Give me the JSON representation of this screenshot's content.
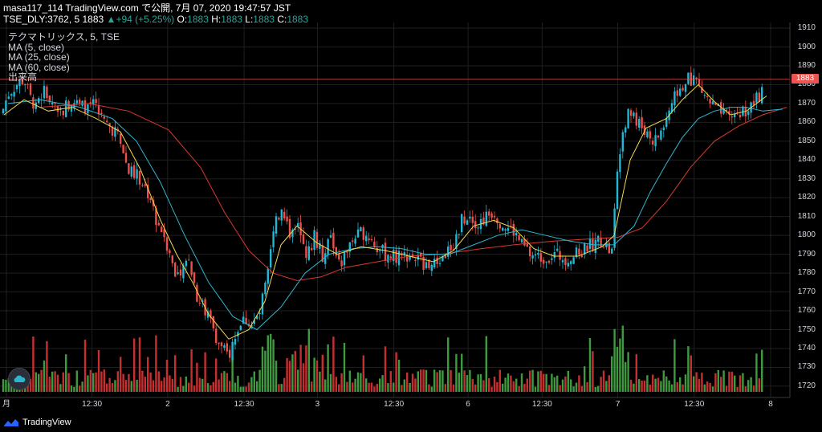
{
  "header": {
    "line1_prefix": "masa117_114 TradingView.com で公開, 7月 07, 2020 19:47:57 JST",
    "symbol": "TSE_DLY:3762, 5 1883",
    "change_arrow": "▲",
    "change": "+94 (+5.25%)",
    "o_label": "O:",
    "o_val": "1883",
    "h_label": "H:",
    "h_val": "1883",
    "l_label": "L:",
    "l_val": "1883",
    "c_label": "C:",
    "c_val": "1883"
  },
  "legend": {
    "symbol_line": "テクマトリックス, 5, TSE",
    "ma5": "MA (5, close)",
    "ma25": "MA (25, close)",
    "ma60": "MA (60, close)",
    "volume": "出来高"
  },
  "current_price": "1883",
  "footer": {
    "brand": "TradingView"
  },
  "colors": {
    "up": "#26a69a",
    "down": "#ef5350",
    "candle_up": "#22b7d4",
    "candle_down": "#ef4f4a",
    "vol_up": "#3f9a3f",
    "vol_down": "#c62f2f",
    "ma5": "#f5d84e",
    "ma25": "#2eb6cf",
    "ma60": "#d9392f",
    "grid": "#1f1f1f"
  },
  "chart_data": {
    "type": "candlestick",
    "yaxis": {
      "ticks": [
        1910,
        1900,
        1890,
        1880,
        1870,
        1860,
        1850,
        1840,
        1830,
        1820,
        1810,
        1800,
        1790,
        1780,
        1770,
        1760,
        1750,
        1740,
        1730,
        1720
      ],
      "range": [
        1714,
        1913
      ]
    },
    "xaxis": {
      "ticks": [
        {
          "label": "月",
          "pos": 0
        },
        {
          "label": "12:30",
          "pos": 0.112
        },
        {
          "label": "2",
          "pos": 0.211
        },
        {
          "label": "12:30",
          "pos": 0.311
        },
        {
          "label": "3",
          "pos": 0.407
        },
        {
          "label": "12:30",
          "pos": 0.507
        },
        {
          "label": "6",
          "pos": 0.604
        },
        {
          "label": "12:30",
          "pos": 0.701
        },
        {
          "label": "7",
          "pos": 0.8
        },
        {
          "label": "12:30",
          "pos": 0.9
        },
        {
          "label": "8",
          "pos": 1.0
        }
      ]
    },
    "price_anchors": [
      [
        0,
        1862
      ],
      [
        10,
        1875
      ],
      [
        20,
        1880
      ],
      [
        30,
        1883
      ],
      [
        40,
        1870
      ],
      [
        55,
        1876
      ],
      [
        75,
        1866
      ],
      [
        90,
        1872
      ],
      [
        100,
        1868
      ],
      [
        115,
        1870
      ],
      [
        130,
        1860
      ],
      [
        145,
        1855
      ],
      [
        160,
        1835
      ],
      [
        175,
        1830
      ],
      [
        185,
        1822
      ],
      [
        195,
        1808
      ],
      [
        205,
        1800
      ],
      [
        215,
        1785
      ],
      [
        225,
        1776
      ],
      [
        235,
        1790
      ],
      [
        245,
        1768
      ],
      [
        255,
        1760
      ],
      [
        265,
        1752
      ],
      [
        275,
        1740
      ],
      [
        285,
        1736
      ],
      [
        295,
        1750
      ],
      [
        305,
        1756
      ],
      [
        315,
        1752
      ],
      [
        325,
        1760
      ],
      [
        335,
        1790
      ],
      [
        345,
        1808
      ],
      [
        352,
        1815
      ],
      [
        362,
        1800
      ],
      [
        372,
        1808
      ],
      [
        382,
        1790
      ],
      [
        392,
        1800
      ],
      [
        402,
        1788
      ],
      [
        412,
        1798
      ],
      [
        425,
        1786
      ],
      [
        440,
        1798
      ],
      [
        455,
        1802
      ],
      [
        468,
        1794
      ],
      [
        480,
        1790
      ],
      [
        495,
        1788
      ],
      [
        510,
        1790
      ],
      [
        525,
        1786
      ],
      [
        540,
        1784
      ],
      [
        555,
        1790
      ],
      [
        565,
        1796
      ],
      [
        575,
        1808
      ],
      [
        585,
        1812
      ],
      [
        595,
        1806
      ],
      [
        605,
        1810
      ],
      [
        615,
        1813
      ],
      [
        625,
        1806
      ],
      [
        640,
        1802
      ],
      [
        650,
        1795
      ],
      [
        660,
        1790
      ],
      [
        675,
        1788
      ],
      [
        690,
        1790
      ],
      [
        705,
        1788
      ],
      [
        720,
        1790
      ],
      [
        735,
        1795
      ],
      [
        750,
        1798
      ],
      [
        762,
        1790
      ],
      [
        768,
        1828
      ],
      [
        775,
        1858
      ],
      [
        785,
        1866
      ],
      [
        795,
        1860
      ],
      [
        805,
        1855
      ],
      [
        815,
        1850
      ],
      [
        825,
        1856
      ],
      [
        835,
        1868
      ],
      [
        845,
        1878
      ],
      [
        855,
        1882
      ],
      [
        865,
        1884
      ],
      [
        875,
        1876
      ],
      [
        885,
        1870
      ],
      [
        895,
        1866
      ],
      [
        905,
        1862
      ],
      [
        915,
        1864
      ],
      [
        925,
        1866
      ],
      [
        935,
        1868
      ],
      [
        945,
        1874
      ],
      [
        950,
        1878
      ]
    ],
    "ma_lines": {
      "ma5": [
        [
          5,
          1864
        ],
        [
          30,
          1872
        ],
        [
          60,
          1866
        ],
        [
          90,
          1868
        ],
        [
          120,
          1862
        ],
        [
          150,
          1855
        ],
        [
          175,
          1835
        ],
        [
          200,
          1808
        ],
        [
          220,
          1790
        ],
        [
          240,
          1775
        ],
        [
          260,
          1758
        ],
        [
          285,
          1745
        ],
        [
          310,
          1750
        ],
        [
          330,
          1765
        ],
        [
          350,
          1795
        ],
        [
          370,
          1805
        ],
        [
          395,
          1796
        ],
        [
          420,
          1790
        ],
        [
          450,
          1794
        ],
        [
          480,
          1792
        ],
        [
          510,
          1789
        ],
        [
          540,
          1786
        ],
        [
          565,
          1792
        ],
        [
          590,
          1805
        ],
        [
          615,
          1808
        ],
        [
          640,
          1804
        ],
        [
          665,
          1793
        ],
        [
          690,
          1789
        ],
        [
          720,
          1789
        ],
        [
          750,
          1794
        ],
        [
          765,
          1800
        ],
        [
          785,
          1840
        ],
        [
          805,
          1857
        ],
        [
          830,
          1862
        ],
        [
          850,
          1872
        ],
        [
          870,
          1880
        ],
        [
          890,
          1871
        ],
        [
          910,
          1864
        ],
        [
          930,
          1866
        ],
        [
          955,
          1874
        ]
      ],
      "ma25": [
        [
          10,
          1870
        ],
        [
          50,
          1872
        ],
        [
          100,
          1868
        ],
        [
          140,
          1862
        ],
        [
          170,
          1850
        ],
        [
          200,
          1828
        ],
        [
          230,
          1800
        ],
        [
          260,
          1775
        ],
        [
          290,
          1757
        ],
        [
          320,
          1750
        ],
        [
          350,
          1762
        ],
        [
          380,
          1780
        ],
        [
          410,
          1790
        ],
        [
          440,
          1793
        ],
        [
          470,
          1794
        ],
        [
          500,
          1793
        ],
        [
          530,
          1790
        ],
        [
          560,
          1790
        ],
        [
          590,
          1795
        ],
        [
          620,
          1800
        ],
        [
          650,
          1803
        ],
        [
          680,
          1800
        ],
        [
          710,
          1797
        ],
        [
          740,
          1795
        ],
        [
          765,
          1795
        ],
        [
          790,
          1805
        ],
        [
          810,
          1823
        ],
        [
          830,
          1838
        ],
        [
          850,
          1852
        ],
        [
          870,
          1862
        ],
        [
          890,
          1866
        ],
        [
          910,
          1868
        ],
        [
          930,
          1868
        ],
        [
          950,
          1866
        ],
        [
          975,
          1867
        ]
      ],
      "ma60": [
        [
          50,
          1868
        ],
        [
          110,
          1870
        ],
        [
          160,
          1866
        ],
        [
          210,
          1856
        ],
        [
          250,
          1836
        ],
        [
          280,
          1812
        ],
        [
          310,
          1792
        ],
        [
          340,
          1780
        ],
        [
          370,
          1776
        ],
        [
          400,
          1778
        ],
        [
          430,
          1783
        ],
        [
          470,
          1786
        ],
        [
          510,
          1789
        ],
        [
          550,
          1790
        ],
        [
          600,
          1793
        ],
        [
          640,
          1795
        ],
        [
          690,
          1797
        ],
        [
          730,
          1798
        ],
        [
          770,
          1799
        ],
        [
          800,
          1804
        ],
        [
          830,
          1818
        ],
        [
          860,
          1836
        ],
        [
          890,
          1850
        ],
        [
          920,
          1858
        ],
        [
          950,
          1864
        ],
        [
          980,
          1868
        ]
      ]
    }
  }
}
